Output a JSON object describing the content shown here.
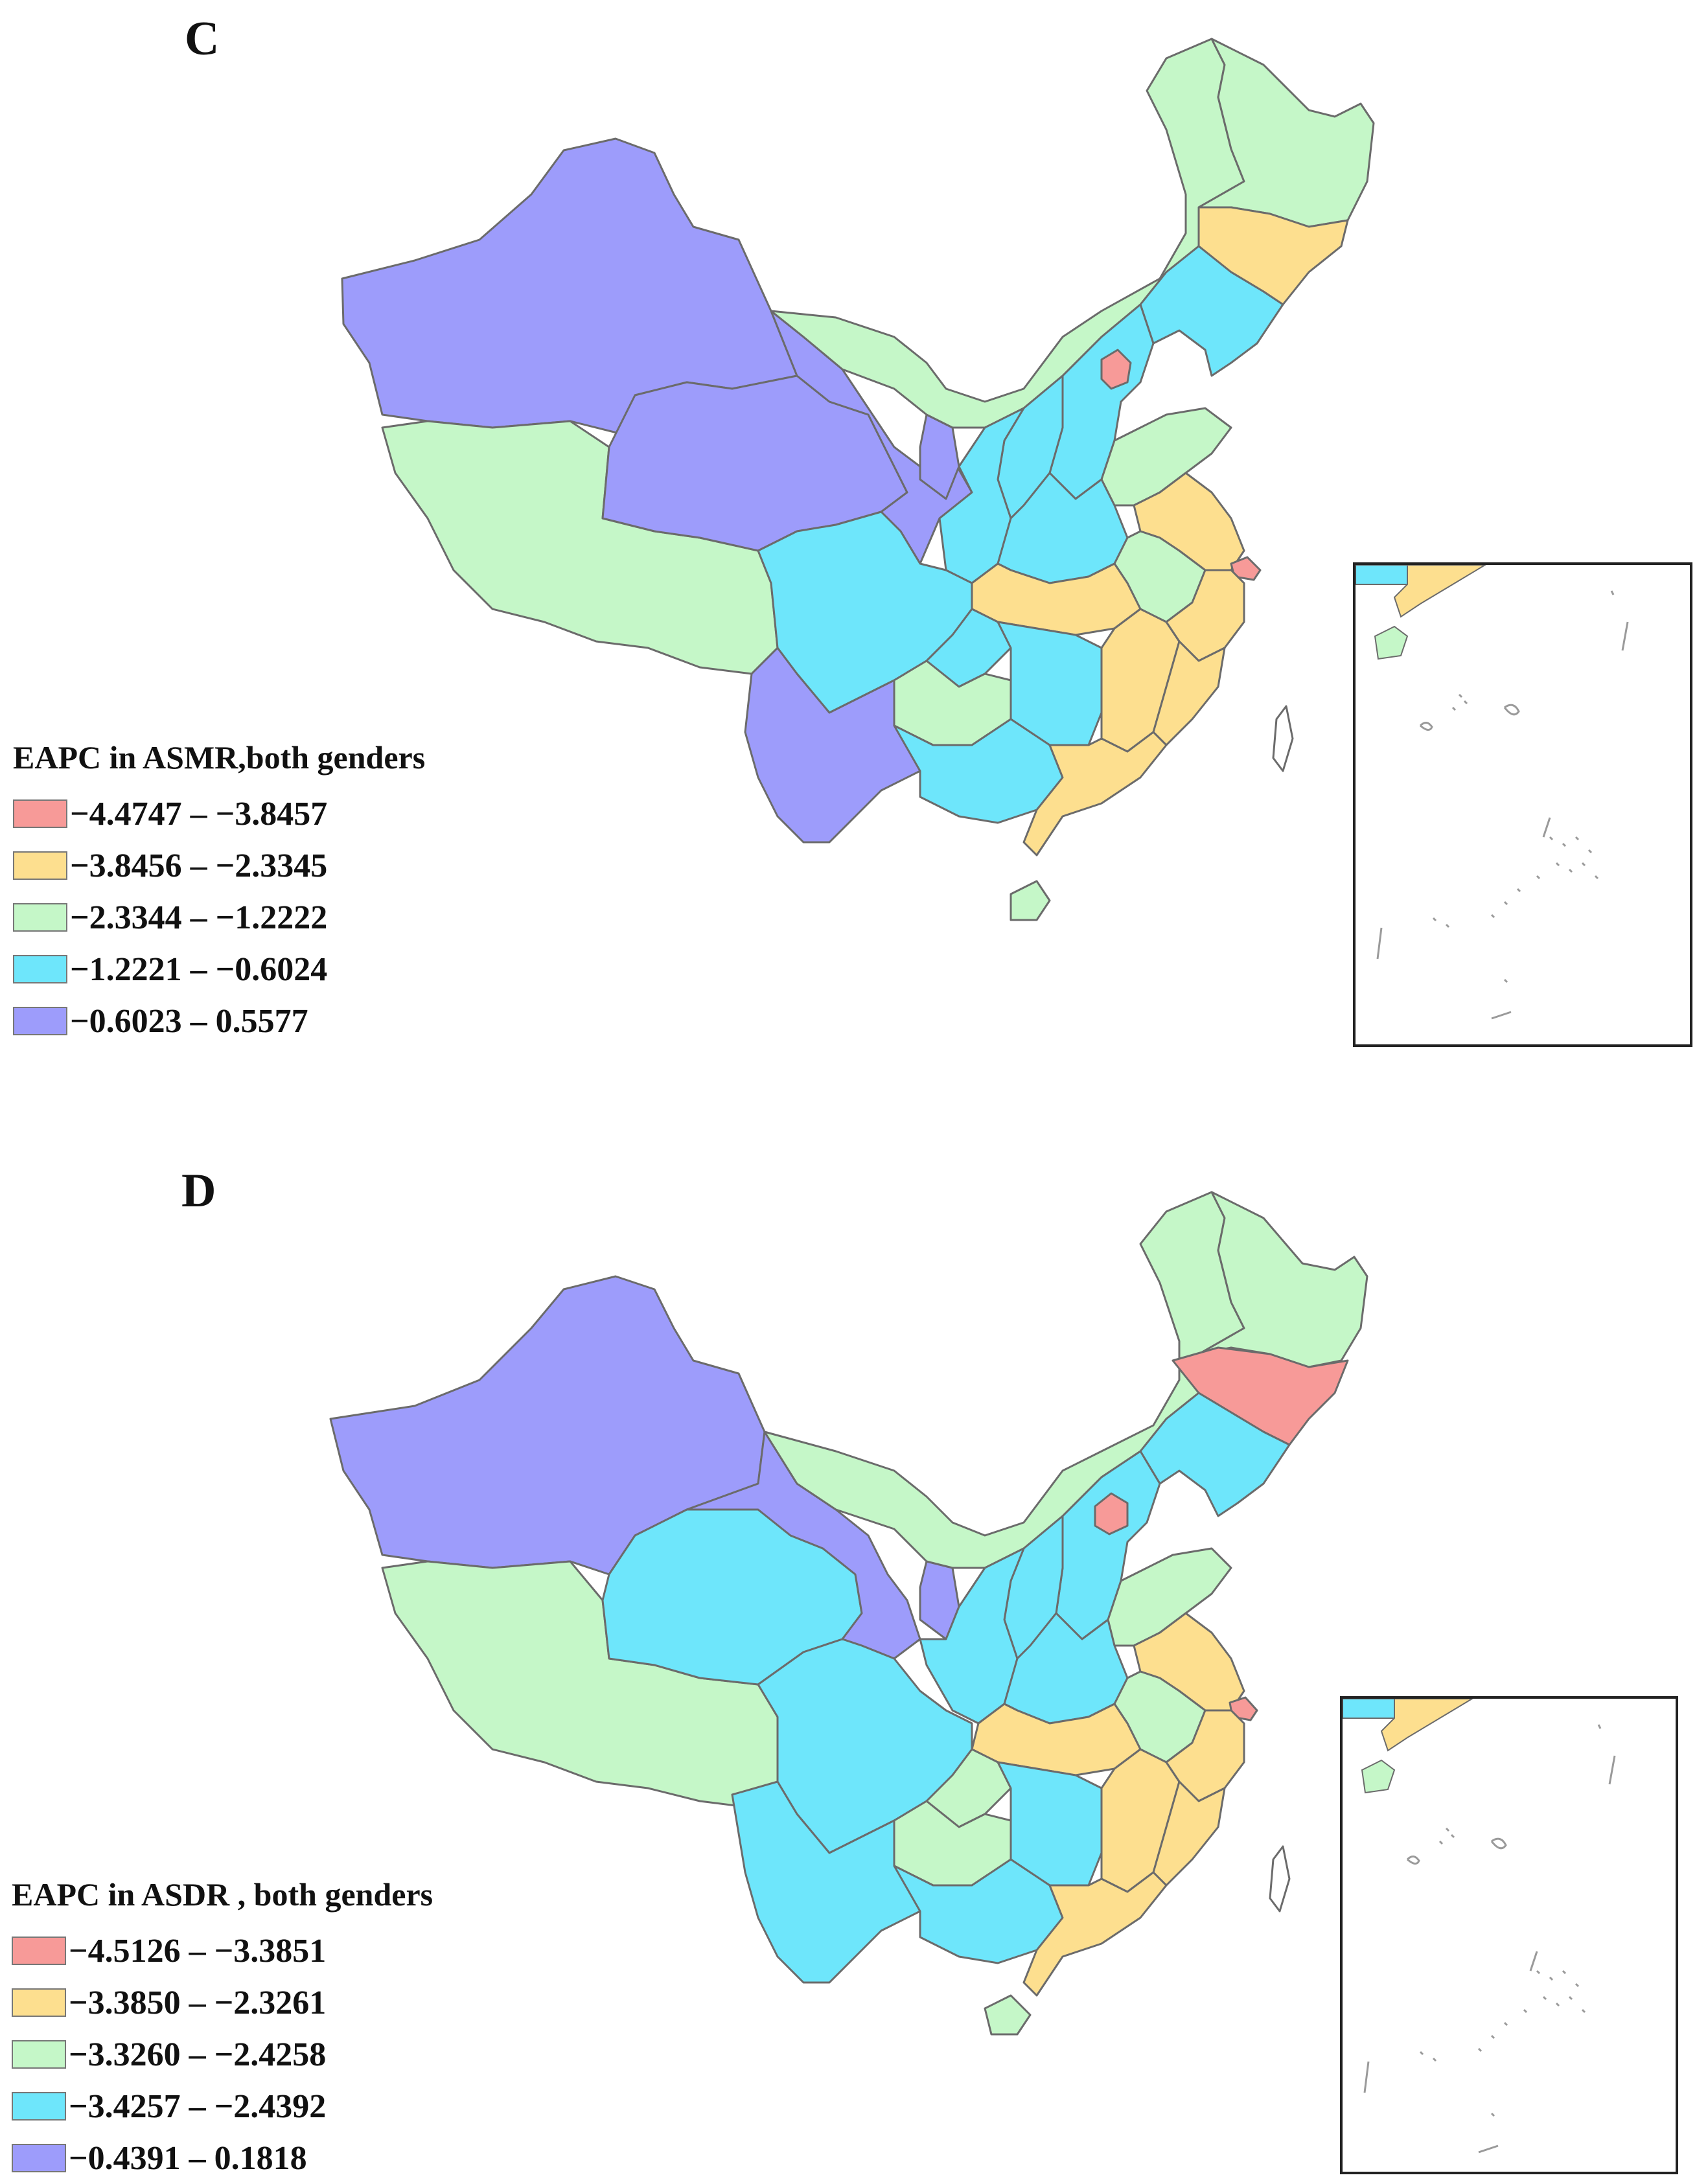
{
  "colors": {
    "red": "#f79a98",
    "yellow": "#fddf8f",
    "green": "#c5f7c8",
    "cyan": "#6ee6fb",
    "purple": "#9d9cfb"
  },
  "panels": [
    {
      "letter": "C",
      "legend": {
        "title": "EAPC in ASMR,both genders",
        "items": [
          {
            "label": "−4.4747 – −3.8457",
            "color": "#f79a98"
          },
          {
            "label": "−3.8456 – −2.3345",
            "color": "#fddf8f"
          },
          {
            "label": "−2.3344 – −1.2222",
            "color": "#c5f7c8"
          },
          {
            "label": "−1.2221 – −0.6024",
            "color": "#6ee6fb"
          },
          {
            "label": "−0.6023 – 0.5577",
            "color": "#9d9cfb"
          }
        ]
      },
      "regions": {
        "xinjiang": "purple",
        "tibet": "green",
        "qinghai": "purple",
        "gansu": "purple",
        "ningxia": "purple",
        "inner_mongolia": "green",
        "heilongjiang": "green",
        "jilin": "yellow",
        "liaoning": "cyan",
        "beijing": "red",
        "hebei": "cyan",
        "shanxi": "cyan",
        "shaanxi": "cyan",
        "shandong": "green",
        "henan": "cyan",
        "jiangsu": "yellow",
        "shanghai": "red",
        "anhui": "green",
        "hubei": "yellow",
        "sichuan": "cyan",
        "chongqing": "cyan",
        "guizhou": "green",
        "yunnan": "purple",
        "hunan": "cyan",
        "jiangxi": "yellow",
        "zhejiang": "yellow",
        "fujian": "yellow",
        "guangxi": "cyan",
        "guangdong": "yellow",
        "hainan": "green",
        "taiwan": "white"
      }
    },
    {
      "letter": "D",
      "legend": {
        "title": "EAPC in ASDR , both genders",
        "items": [
          {
            "label": "−4.5126 – −3.3851",
            "color": "#f79a98"
          },
          {
            "label": "−3.3850 – −2.3261",
            "color": "#fddf8f"
          },
          {
            "label": "−3.3260 – −2.4258",
            "color": "#c5f7c8"
          },
          {
            "label": "−3.4257 – −2.4392",
            "color": "#6ee6fb"
          },
          {
            "label": "−0.4391 – 0.1818",
            "color": "#9d9cfb"
          }
        ]
      },
      "regions": {
        "xinjiang": "purple",
        "tibet": "green",
        "qinghai": "cyan",
        "gansu": "purple",
        "ningxia": "purple",
        "inner_mongolia": "green",
        "heilongjiang": "green",
        "jilin": "red",
        "liaoning": "cyan",
        "beijing": "red",
        "hebei": "cyan",
        "shanxi": "cyan",
        "shaanxi": "cyan",
        "shandong": "green",
        "henan": "cyan",
        "jiangsu": "yellow",
        "shanghai": "red",
        "anhui": "green",
        "hubei": "yellow",
        "sichuan": "cyan",
        "chongqing": "green",
        "guizhou": "green",
        "yunnan": "cyan",
        "hunan": "cyan",
        "jiangxi": "yellow",
        "zhejiang": "yellow",
        "fujian": "yellow",
        "guangxi": "cyan",
        "guangdong": "yellow",
        "hainan": "green",
        "taiwan": "white"
      }
    }
  ]
}
